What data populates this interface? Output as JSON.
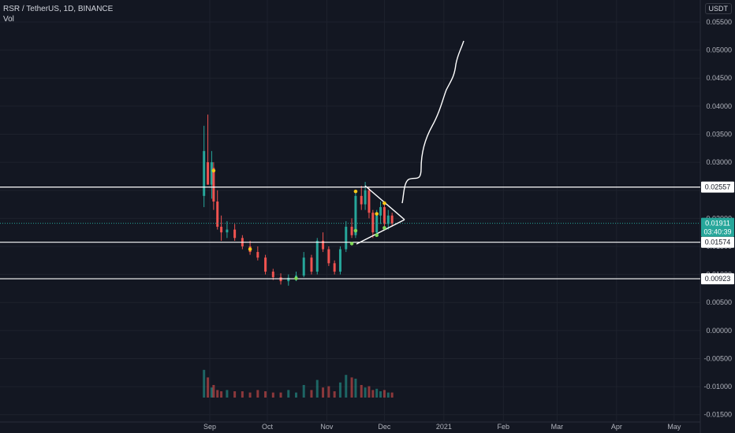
{
  "header": {
    "symbol_line": "RSR / TetherUS, 1D, BINANCE",
    "vol_label": "Vol"
  },
  "currency_pill": "USDT",
  "colors": {
    "background": "#131722",
    "up": "#26a69a",
    "down": "#ef5350",
    "level_line": "#ffffff",
    "price_label": "#26a69a",
    "marker_yellow": "#f5c518",
    "marker_green": "#7ed957",
    "axis_text": "#b2b5be"
  },
  "chart_data": {
    "type": "candlestick",
    "x_ticks": [
      "Sep",
      "Oct",
      "Nov",
      "Dec",
      "2021",
      "Feb",
      "Mar",
      "Apr",
      "May"
    ],
    "y_ticks": [
      "0.05500",
      "0.05000",
      "0.04500",
      "0.04000",
      "0.03500",
      "0.03000",
      "0.02500",
      "0.02000",
      "0.01500",
      "0.01000",
      "0.00500",
      "0.00000",
      "-0.00500",
      "-0.01000",
      "-0.01500"
    ],
    "y_range": [
      -0.0163,
      0.0578
    ],
    "horizontal_levels": [
      {
        "value": 0.02557,
        "label": "0.02557"
      },
      {
        "value": 0.01574,
        "label": "0.01574"
      },
      {
        "value": 0.00923,
        "label": "0.00923"
      }
    ],
    "last_price": {
      "value": 0.01911,
      "label": "0.01911",
      "countdown": "03:40:39"
    },
    "candles": [
      {
        "d": "2020-08-29",
        "o": 0.024,
        "h": 0.0365,
        "l": 0.022,
        "c": 0.032
      },
      {
        "d": "2020-08-31",
        "o": 0.03,
        "h": 0.0385,
        "l": 0.026,
        "c": 0.026
      },
      {
        "d": "2020-09-02",
        "o": 0.026,
        "h": 0.032,
        "l": 0.0235,
        "c": 0.03
      },
      {
        "d": "2020-09-03",
        "o": 0.029,
        "h": 0.03,
        "l": 0.0215,
        "c": 0.023
      },
      {
        "d": "2020-09-05",
        "o": 0.023,
        "h": 0.025,
        "l": 0.018,
        "c": 0.0185
      },
      {
        "d": "2020-09-07",
        "o": 0.0185,
        "h": 0.0205,
        "l": 0.016,
        "c": 0.0175
      },
      {
        "d": "2020-09-10",
        "o": 0.0175,
        "h": 0.0195,
        "l": 0.0165,
        "c": 0.018
      },
      {
        "d": "2020-09-14",
        "o": 0.018,
        "h": 0.019,
        "l": 0.016,
        "c": 0.0165
      },
      {
        "d": "2020-09-18",
        "o": 0.0165,
        "h": 0.017,
        "l": 0.0145,
        "c": 0.015
      },
      {
        "d": "2020-09-22",
        "o": 0.015,
        "h": 0.016,
        "l": 0.0135,
        "c": 0.014
      },
      {
        "d": "2020-09-26",
        "o": 0.014,
        "h": 0.015,
        "l": 0.0125,
        "c": 0.013
      },
      {
        "d": "2020-09-30",
        "o": 0.013,
        "h": 0.0135,
        "l": 0.01,
        "c": 0.0105
      },
      {
        "d": "2020-10-04",
        "o": 0.0105,
        "h": 0.011,
        "l": 0.009,
        "c": 0.0095
      },
      {
        "d": "2020-10-08",
        "o": 0.0095,
        "h": 0.0102,
        "l": 0.0082,
        "c": 0.0088
      },
      {
        "d": "2020-10-12",
        "o": 0.0088,
        "h": 0.01,
        "l": 0.008,
        "c": 0.0094
      },
      {
        "d": "2020-10-16",
        "o": 0.0094,
        "h": 0.0105,
        "l": 0.0088,
        "c": 0.0098
      },
      {
        "d": "2020-10-20",
        "o": 0.0098,
        "h": 0.014,
        "l": 0.0095,
        "c": 0.013
      },
      {
        "d": "2020-10-24",
        "o": 0.013,
        "h": 0.0135,
        "l": 0.01,
        "c": 0.0105
      },
      {
        "d": "2020-10-27",
        "o": 0.0105,
        "h": 0.0165,
        "l": 0.01,
        "c": 0.016
      },
      {
        "d": "2020-10-30",
        "o": 0.016,
        "h": 0.0175,
        "l": 0.014,
        "c": 0.0145
      },
      {
        "d": "2020-11-02",
        "o": 0.0145,
        "h": 0.015,
        "l": 0.0115,
        "c": 0.012
      },
      {
        "d": "2020-11-05",
        "o": 0.012,
        "h": 0.0125,
        "l": 0.01,
        "c": 0.0105
      },
      {
        "d": "2020-11-08",
        "o": 0.0105,
        "h": 0.015,
        "l": 0.01,
        "c": 0.0145
      },
      {
        "d": "2020-11-11",
        "o": 0.0145,
        "h": 0.0195,
        "l": 0.014,
        "c": 0.0185
      },
      {
        "d": "2020-11-14",
        "o": 0.0185,
        "h": 0.02,
        "l": 0.0165,
        "c": 0.017
      },
      {
        "d": "2020-11-16",
        "o": 0.017,
        "h": 0.025,
        "l": 0.0165,
        "c": 0.024
      },
      {
        "d": "2020-11-19",
        "o": 0.024,
        "h": 0.0258,
        "l": 0.0215,
        "c": 0.0225
      },
      {
        "d": "2020-11-21",
        "o": 0.0225,
        "h": 0.0265,
        "l": 0.0215,
        "c": 0.025
      },
      {
        "d": "2020-11-23",
        "o": 0.025,
        "h": 0.0255,
        "l": 0.02,
        "c": 0.021
      },
      {
        "d": "2020-11-25",
        "o": 0.021,
        "h": 0.0215,
        "l": 0.0165,
        "c": 0.0175
      },
      {
        "d": "2020-11-27",
        "o": 0.0175,
        "h": 0.0215,
        "l": 0.017,
        "c": 0.0205
      },
      {
        "d": "2020-11-29",
        "o": 0.0205,
        "h": 0.023,
        "l": 0.019,
        "c": 0.022
      },
      {
        "d": "2020-12-01",
        "o": 0.022,
        "h": 0.0225,
        "l": 0.018,
        "c": 0.019
      },
      {
        "d": "2020-12-03",
        "o": 0.019,
        "h": 0.0215,
        "l": 0.018,
        "c": 0.0205
      },
      {
        "d": "2020-12-05",
        "o": 0.0205,
        "h": 0.021,
        "l": 0.0185,
        "c": 0.0191
      }
    ],
    "volume_note": "volume histogram below price pane"
  }
}
